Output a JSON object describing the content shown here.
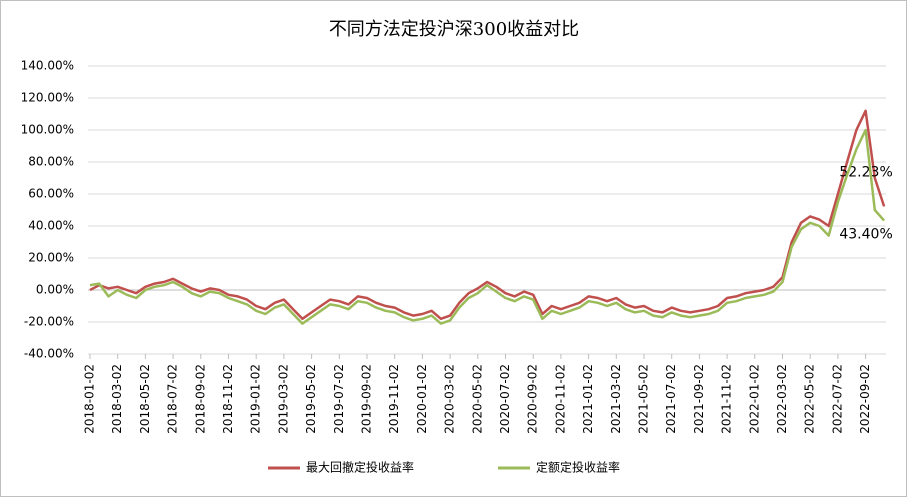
{
  "chart_data": {
    "type": "line",
    "title": "不同方法定投沪深300收益对比",
    "categories": [
      "2018-01-02",
      null,
      null,
      "2018-03-02",
      null,
      null,
      "2018-05-02",
      null,
      null,
      "2018-07-02",
      null,
      null,
      "2018-09-02",
      null,
      null,
      "2018-11-02",
      null,
      null,
      "2019-01-02",
      null,
      null,
      "2019-03-02",
      null,
      null,
      "2019-05-02",
      null,
      null,
      "2019-07-02",
      null,
      null,
      "2019-09-02",
      null,
      null,
      "2019-11-02",
      null,
      null,
      "2020-01-02",
      null,
      null,
      "2020-03-02",
      null,
      null,
      "2020-05-02",
      null,
      null,
      "2020-07-02",
      null,
      null,
      "2020-09-02",
      null,
      null,
      "2020-11-02",
      null,
      null,
      "2021-01-02",
      null,
      null,
      "2021-03-02",
      null,
      null,
      "2021-05-02",
      null,
      null,
      "2021-07-02",
      null,
      null,
      "2021-09-02",
      null,
      null,
      "2021-11-02",
      null,
      null,
      "2022-01-02",
      null,
      null,
      "2022-03-02",
      null,
      null,
      "2022-05-02",
      null,
      null,
      "2022-07-02",
      null,
      null,
      "2022-09-02",
      null,
      null
    ],
    "series": [
      {
        "name": "最大回撤定投收益率",
        "color": "#c0504d",
        "values": [
          0,
          3,
          1,
          2,
          0,
          -2,
          2,
          4,
          5,
          7,
          4,
          1,
          -1,
          1,
          0,
          -3,
          -4,
          -6,
          -10,
          -12,
          -8,
          -6,
          -12,
          -18,
          -14,
          -10,
          -6,
          -7,
          -9,
          -4,
          -5,
          -8,
          -10,
          -11,
          -14,
          -16,
          -15,
          -13,
          -18,
          -16,
          -8,
          -2,
          1,
          5,
          2,
          -2,
          -4,
          -1,
          -3,
          -15,
          -10,
          -12,
          -10,
          -8,
          -4,
          -5,
          -7,
          -5,
          -9,
          -11,
          -10,
          -13,
          -14,
          -11,
          -13,
          -14,
          -13,
          -12,
          -10,
          -5,
          -4,
          -2,
          -1,
          0,
          2,
          8,
          30,
          42,
          46,
          44,
          40,
          60,
          80,
          100,
          112,
          70,
          52.23
        ],
        "value_labels": [
          null,
          null,
          null,
          null,
          null,
          null,
          null,
          null,
          null,
          null,
          null,
          null,
          null,
          null,
          null,
          null,
          null,
          null,
          null,
          null,
          null,
          null,
          null,
          null,
          null,
          null,
          null,
          null,
          null,
          null,
          null,
          null,
          null,
          null,
          null,
          null,
          null,
          null,
          null,
          null,
          null,
          null,
          null,
          null,
          null,
          null,
          null,
          null,
          null,
          null,
          null,
          null,
          null,
          null,
          null,
          null,
          null,
          null,
          null,
          null,
          null,
          null,
          null,
          null,
          null,
          null,
          null,
          null,
          null,
          null,
          null,
          null,
          null,
          null,
          null,
          null,
          null,
          null,
          null,
          null,
          null,
          null,
          null,
          null,
          null,
          null,
          "52.23%"
        ]
      },
      {
        "name": "定额定投收益率",
        "color": "#9bbb59",
        "values": [
          3,
          4,
          -4,
          0,
          -3,
          -5,
          0,
          2,
          3,
          5,
          2,
          -2,
          -4,
          -1,
          -2,
          -5,
          -7,
          -9,
          -13,
          -15,
          -11,
          -9,
          -15,
          -21,
          -17,
          -13,
          -9,
          -10,
          -12,
          -7,
          -8,
          -11,
          -13,
          -14,
          -17,
          -19,
          -18,
          -16,
          -21,
          -19,
          -11,
          -5,
          -2,
          3,
          -1,
          -5,
          -7,
          -4,
          -6,
          -18,
          -13,
          -15,
          -13,
          -11,
          -7,
          -8,
          -10,
          -8,
          -12,
          -14,
          -13,
          -16,
          -17,
          -14,
          -16,
          -17,
          -16,
          -15,
          -13,
          -8,
          -7,
          -5,
          -4,
          -3,
          -1,
          5,
          27,
          38,
          42,
          40,
          34,
          55,
          72,
          88,
          100,
          50,
          43.4
        ],
        "value_labels": [
          null,
          null,
          null,
          null,
          null,
          null,
          null,
          null,
          null,
          null,
          null,
          null,
          null,
          null,
          null,
          null,
          null,
          null,
          null,
          null,
          null,
          null,
          null,
          null,
          null,
          null,
          null,
          null,
          null,
          null,
          null,
          null,
          null,
          null,
          null,
          null,
          null,
          null,
          null,
          null,
          null,
          null,
          null,
          null,
          null,
          null,
          null,
          null,
          null,
          null,
          null,
          null,
          null,
          null,
          null,
          null,
          null,
          null,
          null,
          null,
          null,
          null,
          null,
          null,
          null,
          null,
          null,
          null,
          null,
          null,
          null,
          null,
          null,
          null,
          null,
          null,
          null,
          null,
          null,
          null,
          null,
          null,
          null,
          null,
          null,
          null,
          "43.40%"
        ]
      }
    ],
    "ylim": [
      -40,
      140
    ],
    "yticks": [
      {
        "value": -40,
        "label": "-40.00%"
      },
      {
        "value": -20,
        "label": "-20.00%"
      },
      {
        "value": 0,
        "label": "0.00%"
      },
      {
        "value": 20,
        "label": "20.00%"
      },
      {
        "value": 40,
        "label": "40.00%"
      },
      {
        "value": 60,
        "label": "60.00%"
      },
      {
        "value": 80,
        "label": "80.00%"
      },
      {
        "value": 100,
        "label": "100.00%"
      },
      {
        "value": 120,
        "label": "120.00%"
      },
      {
        "value": 140,
        "label": "140.00%"
      }
    ],
    "grid": true,
    "legend": "bottom"
  }
}
